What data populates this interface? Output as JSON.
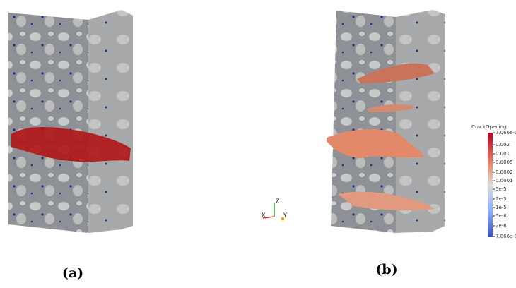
{
  "panels": [
    {
      "label": "(a)"
    },
    {
      "label": "(b)"
    }
  ],
  "axes": {
    "x": "X",
    "y": "Y",
    "z": "Z"
  },
  "colorbar": {
    "title": "CrackOpening",
    "ticks": [
      "7.066e-03",
      "0.002",
      "0.001",
      "0.0005",
      "0.0002",
      "0.0001",
      "5e-5",
      "2e-5",
      "1e-5",
      "5e-6",
      "2e-6",
      "7.066e-07"
    ]
  }
}
